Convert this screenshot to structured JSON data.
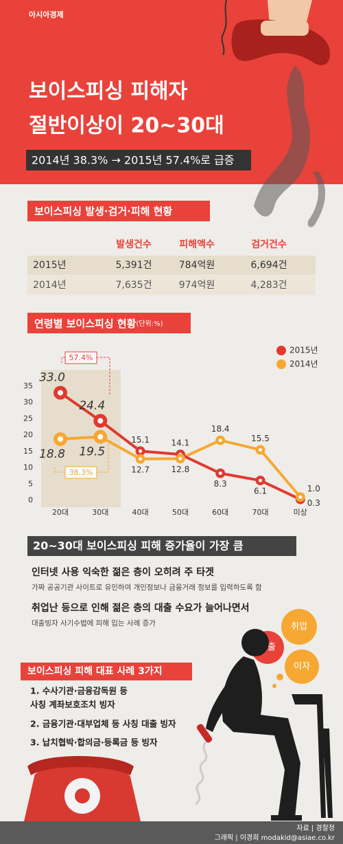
{
  "header": {
    "logo": "아시아경제",
    "title_lines": [
      "보이스피싱 피해자",
      "절반이상이 20~30대"
    ],
    "summary": "2014년 38.3% → 2015년 57.4%로 급증"
  },
  "table": {
    "title": "보이스피싱 발생·검거·피해 현황",
    "columns": [
      "발생건수",
      "피해액수",
      "검거건수"
    ],
    "rows": [
      [
        "2015년",
        "5,391건",
        "784억원",
        "6,694건"
      ],
      [
        "2014년",
        "7,635건",
        "974억원",
        "4,283건"
      ]
    ]
  },
  "chart_data": {
    "type": "line",
    "title": "연령별 보이스피싱 현황",
    "unit": "(단위:%)",
    "categories": [
      "20대",
      "30대",
      "40대",
      "50대",
      "60대",
      "70대",
      "미상"
    ],
    "series": [
      {
        "name": "2015년",
        "color": "#e03a30",
        "values": [
          33.0,
          24.4,
          15.1,
          14.1,
          8.3,
          6.1,
          0.3
        ],
        "value_labels": [
          "33.0",
          "24.4",
          "15.1",
          "14.1",
          "8.3",
          "6.1",
          "0.3"
        ]
      },
      {
        "name": "2014년",
        "color": "#f7a833",
        "values": [
          18.8,
          19.5,
          12.7,
          12.8,
          18.4,
          15.5,
          1.0
        ],
        "value_labels": [
          "18.8",
          "19.5",
          "12.7",
          "12.8",
          "18.4",
          "15.5",
          "1.0"
        ]
      }
    ],
    "ylim": [
      0,
      35
    ],
    "yticks": [
      0,
      5,
      10,
      15,
      20,
      25,
      30,
      35
    ],
    "annotations": [
      "57.4%",
      "38.3%"
    ]
  },
  "findings": {
    "title": "20~30대 보이스피싱 피해 증가율이 가장 큼",
    "points": [
      {
        "head": "인터넷 사용 익숙한 젊은 층이 오히려 주 타겟",
        "detail": "가짜 공공기관 사이트로 유인하여 개인정보나 금융거래 정보를 입력하도록 함"
      },
      {
        "head": "취업난 등으로 인해 젊은 층의 대출 수요가 늘어나면서",
        "detail": "대출빙자 사기수법에 피해 입는 사례 증가"
      }
    ]
  },
  "bubbles": [
    "취업",
    "대출",
    "이자"
  ],
  "cases": {
    "title": "보이스피싱 피해 대표 사례 3가지",
    "items": [
      [
        "1. 수사기관·금융감독원 등",
        "사칭 계좌보호조치 빙자"
      ],
      [
        "2. 금융기관·대부업체 등 사칭 대출 빙자"
      ],
      [
        "3. 납치협박·합의금·등록금 등 빙자"
      ]
    ]
  },
  "footer": {
    "source": "자료 | 경찰청",
    "credit": "그래픽 | 이경희 modakid@asiae.co.kr"
  }
}
